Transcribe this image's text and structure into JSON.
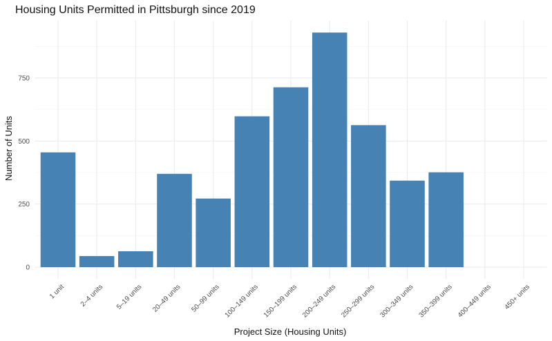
{
  "chart_data": {
    "type": "bar",
    "title": "Housing Units Permitted in Pittsburgh since 2019",
    "xlabel": "Project Size (Housing Units)",
    "ylabel": "Number of Units",
    "categories": [
      "1 unit",
      "2–4 units",
      "5–19 units",
      "20–49 units",
      "50–99 units",
      "100–149 units",
      "150–199 units",
      "200–249 units",
      "250–299 units",
      "300–349 units",
      "350–399 units",
      "400–449 units",
      "450+ units"
    ],
    "values": [
      455,
      44,
      63,
      370,
      272,
      598,
      713,
      930,
      563,
      343,
      376,
      0,
      0
    ],
    "yticks": [
      0,
      250,
      500,
      750
    ],
    "ytick_labels": [
      "0",
      "250",
      "500",
      "750"
    ],
    "ylim": [
      -46.5,
      977
    ],
    "grid": true,
    "bar_color": "#4682B4"
  }
}
